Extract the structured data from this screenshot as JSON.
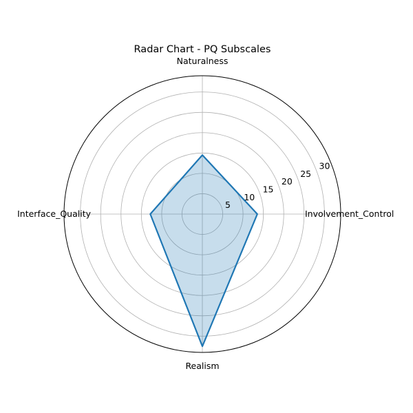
{
  "chart_data": {
    "type": "radar",
    "title": "Radar Chart - PQ Subscales",
    "categories": [
      "Involvement_Control",
      "Naturalness",
      "Interface_Quality",
      "Realism"
    ],
    "series": [
      {
        "values": [
          13.5,
          14.5,
          12.8,
          32.5
        ]
      }
    ],
    "rlim": [
      0,
      34
    ],
    "rticks": [
      5,
      10,
      15,
      20,
      25,
      30
    ],
    "grid": true,
    "colors": {
      "line": "#1f77b4",
      "fill": "#1f77b4",
      "grid": "#b0b0b0",
      "frame": "#000000"
    }
  }
}
